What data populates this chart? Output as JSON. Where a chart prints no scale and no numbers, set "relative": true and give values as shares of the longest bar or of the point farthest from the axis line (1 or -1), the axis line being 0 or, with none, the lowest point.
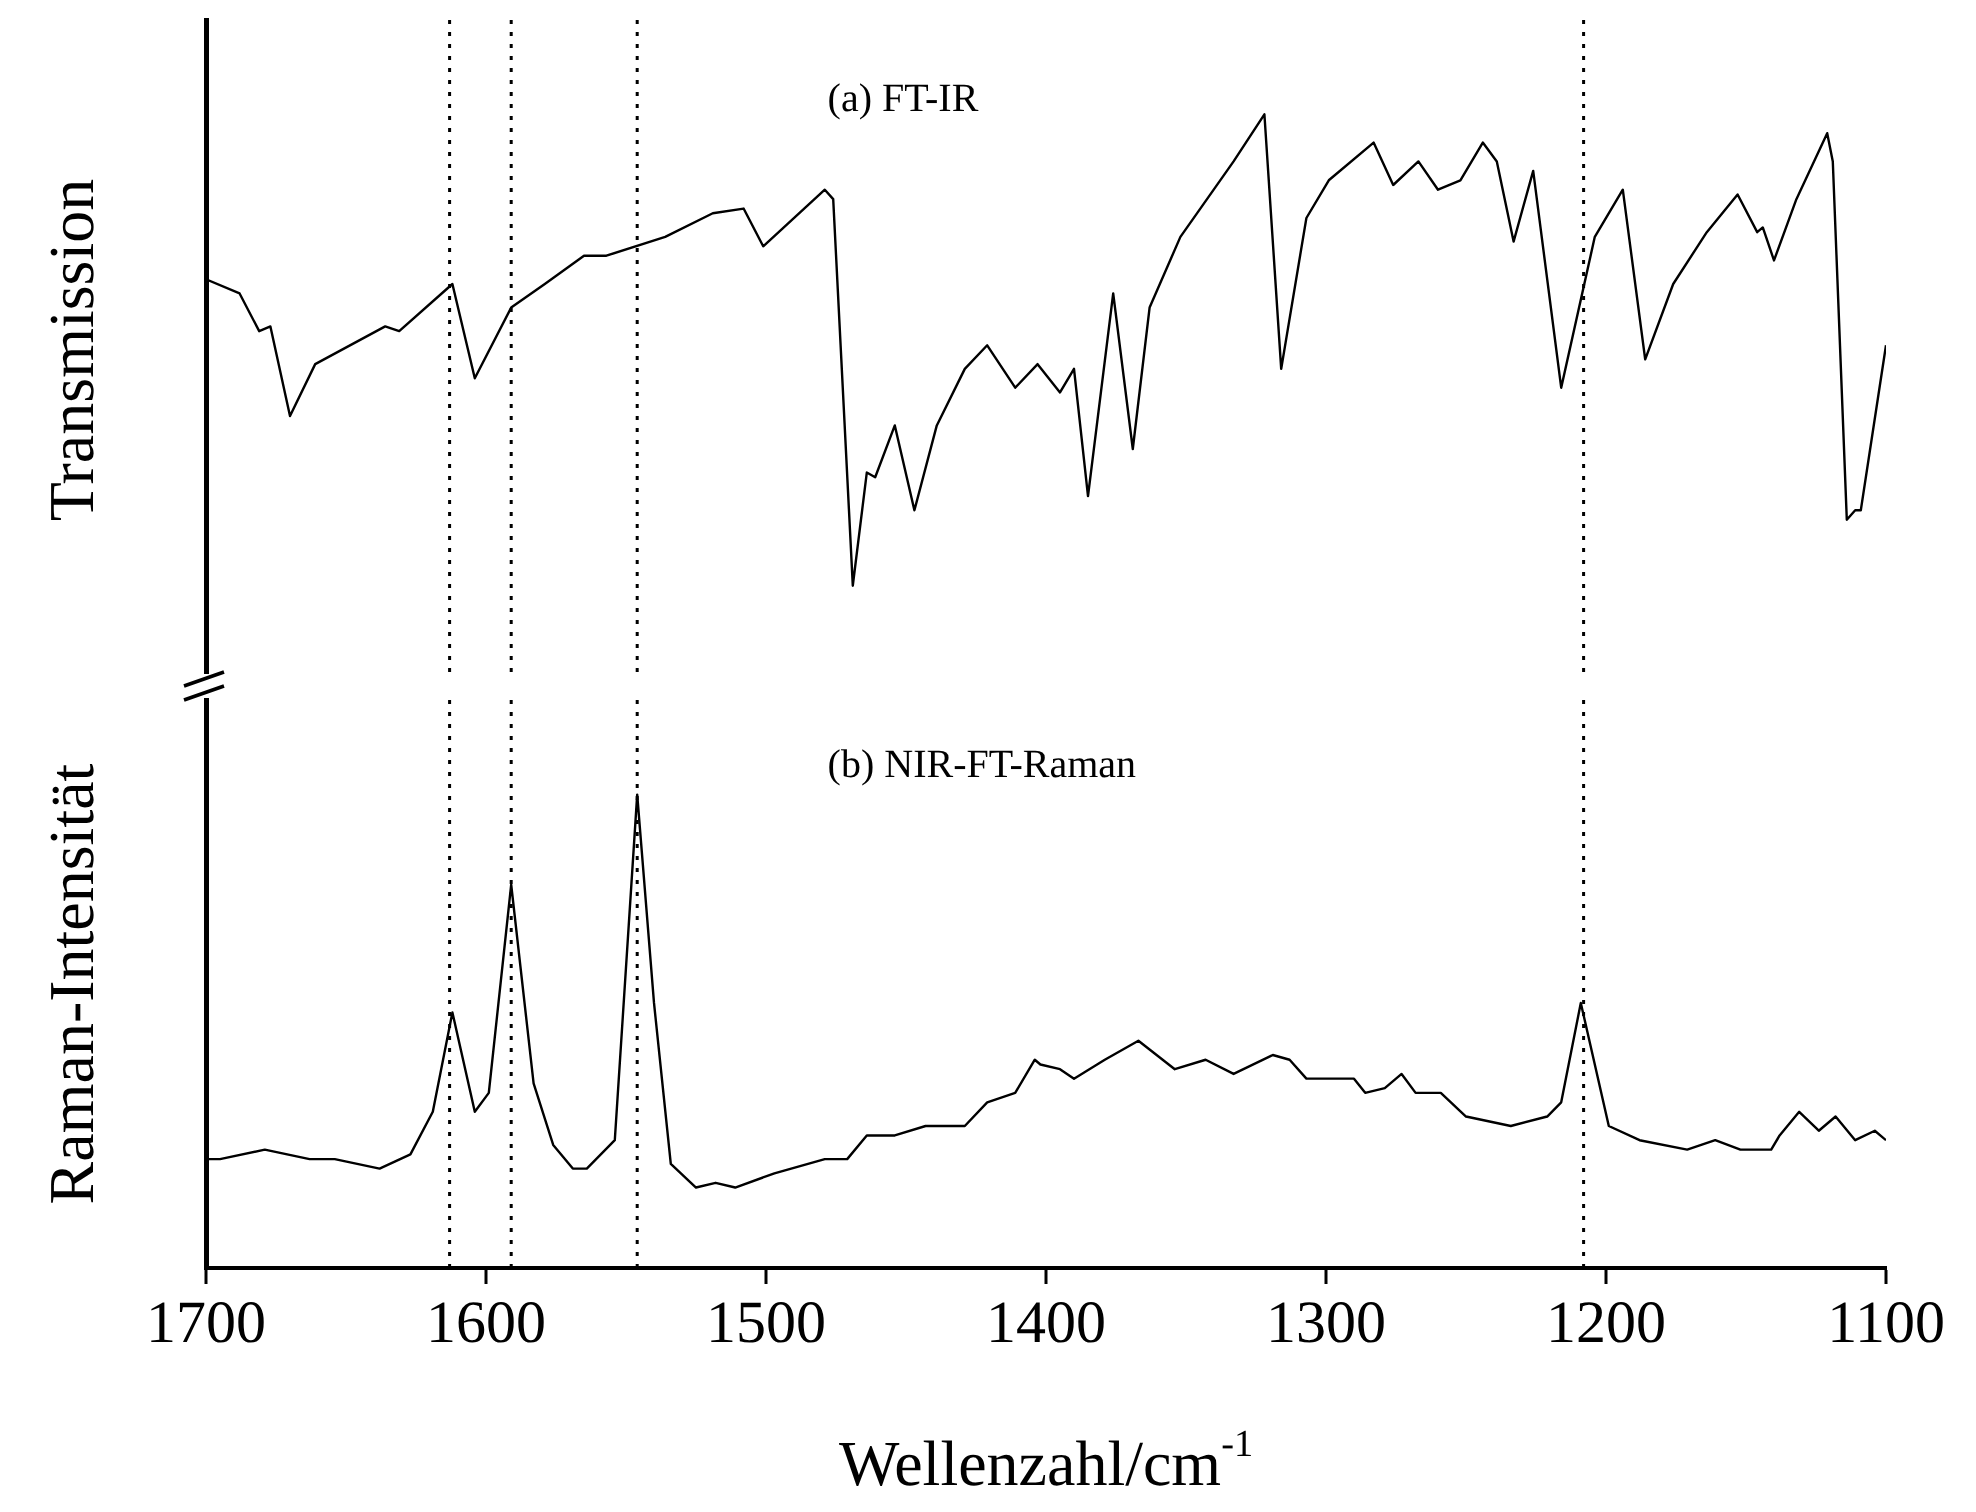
{
  "chart_data": [
    {
      "type": "line",
      "ylabel": "Transmission",
      "annotations": [
        "(a) FT-IR"
      ],
      "relative": true,
      "grid": false,
      "tick_labels": false,
      "xlim": [
        1700,
        1100
      ],
      "xticks": [
        1700,
        1600,
        1500,
        1400,
        1300,
        1200,
        1100
      ],
      "x": [
        1700,
        1688,
        1681,
        1677,
        1670,
        1661,
        1636,
        1631,
        1612,
        1604,
        1591,
        1579,
        1565,
        1557,
        1536,
        1519,
        1508,
        1501,
        1479,
        1476,
        1469,
        1464,
        1461,
        1454,
        1447,
        1439,
        1429,
        1421,
        1411,
        1403,
        1395,
        1390,
        1385,
        1376,
        1369,
        1363,
        1352,
        1333,
        1322,
        1316,
        1307,
        1299,
        1283,
        1276,
        1267,
        1260,
        1252,
        1244,
        1239,
        1233,
        1226,
        1216,
        1204,
        1194,
        1186,
        1176,
        1164,
        1153,
        1146,
        1144,
        1140,
        1132,
        1121,
        1119,
        1114,
        1111,
        1109,
        1100
      ],
      "series": [
        {
          "color": "#000000",
          "values": [
            0.65,
            0.62,
            0.54,
            0.55,
            0.36,
            0.47,
            0.55,
            0.54,
            0.64,
            0.44,
            0.59,
            0.64,
            0.7,
            0.7,
            0.74,
            0.79,
            0.8,
            0.72,
            0.84,
            0.82,
            0,
            0.24,
            0.23,
            0.34,
            0.16,
            0.34,
            0.46,
            0.51,
            0.42,
            0.47,
            0.41,
            0.46,
            0.19,
            0.62,
            0.29,
            0.59,
            0.74,
            0.9,
            1,
            0.46,
            0.78,
            0.86,
            0.94,
            0.85,
            0.9,
            0.84,
            0.86,
            0.94,
            0.9,
            0.73,
            0.88,
            0.42,
            0.74,
            0.84,
            0.48,
            0.64,
            0.75,
            0.83,
            0.75,
            0.76,
            0.69,
            0.82,
            0.96,
            0.9,
            0.14,
            0.16,
            0.16,
            0.51
          ]
        }
      ],
      "ref_lines": [
        {
          "axis": "x",
          "value": 1613,
          "color": "#000000",
          "line_style": "dotted"
        },
        {
          "axis": "x",
          "value": 1591,
          "color": "#000000",
          "line_style": "dotted"
        },
        {
          "axis": "x",
          "value": 1546,
          "color": "#000000",
          "line_style": "dotted"
        },
        {
          "axis": "x",
          "value": 1208,
          "color": "#000000",
          "line_style": "dotted"
        }
      ]
    },
    {
      "type": "line",
      "ylabel": "Raman-Intensität",
      "xlabel": "Wellenzahl/cm$^{-1}$",
      "annotations": [
        "(b) NIR-FT-Raman"
      ],
      "relative": true,
      "grid": false,
      "tick_labels": "x",
      "xlim": [
        1700,
        1100
      ],
      "xticks": [
        1700,
        1600,
        1500,
        1400,
        1300,
        1200,
        1100
      ],
      "x": [
        1700,
        1695,
        1679,
        1663,
        1654,
        1646,
        1638,
        1627,
        1619,
        1612,
        1604,
        1599,
        1591,
        1583,
        1576,
        1569,
        1564,
        1554,
        1546,
        1540,
        1534,
        1525,
        1518,
        1511,
        1497,
        1479,
        1471,
        1464,
        1454,
        1443,
        1429,
        1421,
        1411,
        1404,
        1402,
        1395,
        1390,
        1379,
        1367,
        1354,
        1343,
        1333,
        1319,
        1313,
        1307,
        1290,
        1286,
        1279,
        1273,
        1268,
        1259,
        1250,
        1234,
        1221,
        1216,
        1209,
        1199,
        1188,
        1171,
        1161,
        1152,
        1141,
        1138,
        1131,
        1124,
        1118,
        1111,
        1104,
        1100
      ],
      "series": [
        {
          "color": "#000000",
          "values": [
            0.23,
            0.23,
            0.25,
            0.23,
            0.23,
            0.22,
            0.21,
            0.24,
            0.33,
            0.54,
            0.33,
            0.37,
            0.81,
            0.39,
            0.26,
            0.21,
            0.21,
            0.27,
            1,
            0.56,
            0.22,
            0.17,
            0.18,
            0.17,
            0.2,
            0.23,
            0.23,
            0.28,
            0.28,
            0.3,
            0.3,
            0.35,
            0.37,
            0.44,
            0.43,
            0.42,
            0.4,
            0.44,
            0.48,
            0.42,
            0.44,
            0.41,
            0.45,
            0.44,
            0.4,
            0.4,
            0.37,
            0.38,
            0.41,
            0.37,
            0.37,
            0.32,
            0.3,
            0.32,
            0.35,
            0.56,
            0.3,
            0.27,
            0.25,
            0.27,
            0.25,
            0.25,
            0.28,
            0.33,
            0.29,
            0.32,
            0.27,
            0.29,
            0.27
          ]
        }
      ],
      "ref_lines": [
        {
          "axis": "x",
          "value": 1613,
          "color": "#000000",
          "line_style": "dotted"
        },
        {
          "axis": "x",
          "value": 1591,
          "color": "#000000",
          "line_style": "dotted"
        },
        {
          "axis": "x",
          "value": 1546,
          "color": "#000000",
          "line_style": "dotted"
        },
        {
          "axis": "x",
          "value": 1208,
          "color": "#000000",
          "line_style": "dotted"
        }
      ]
    }
  ]
}
